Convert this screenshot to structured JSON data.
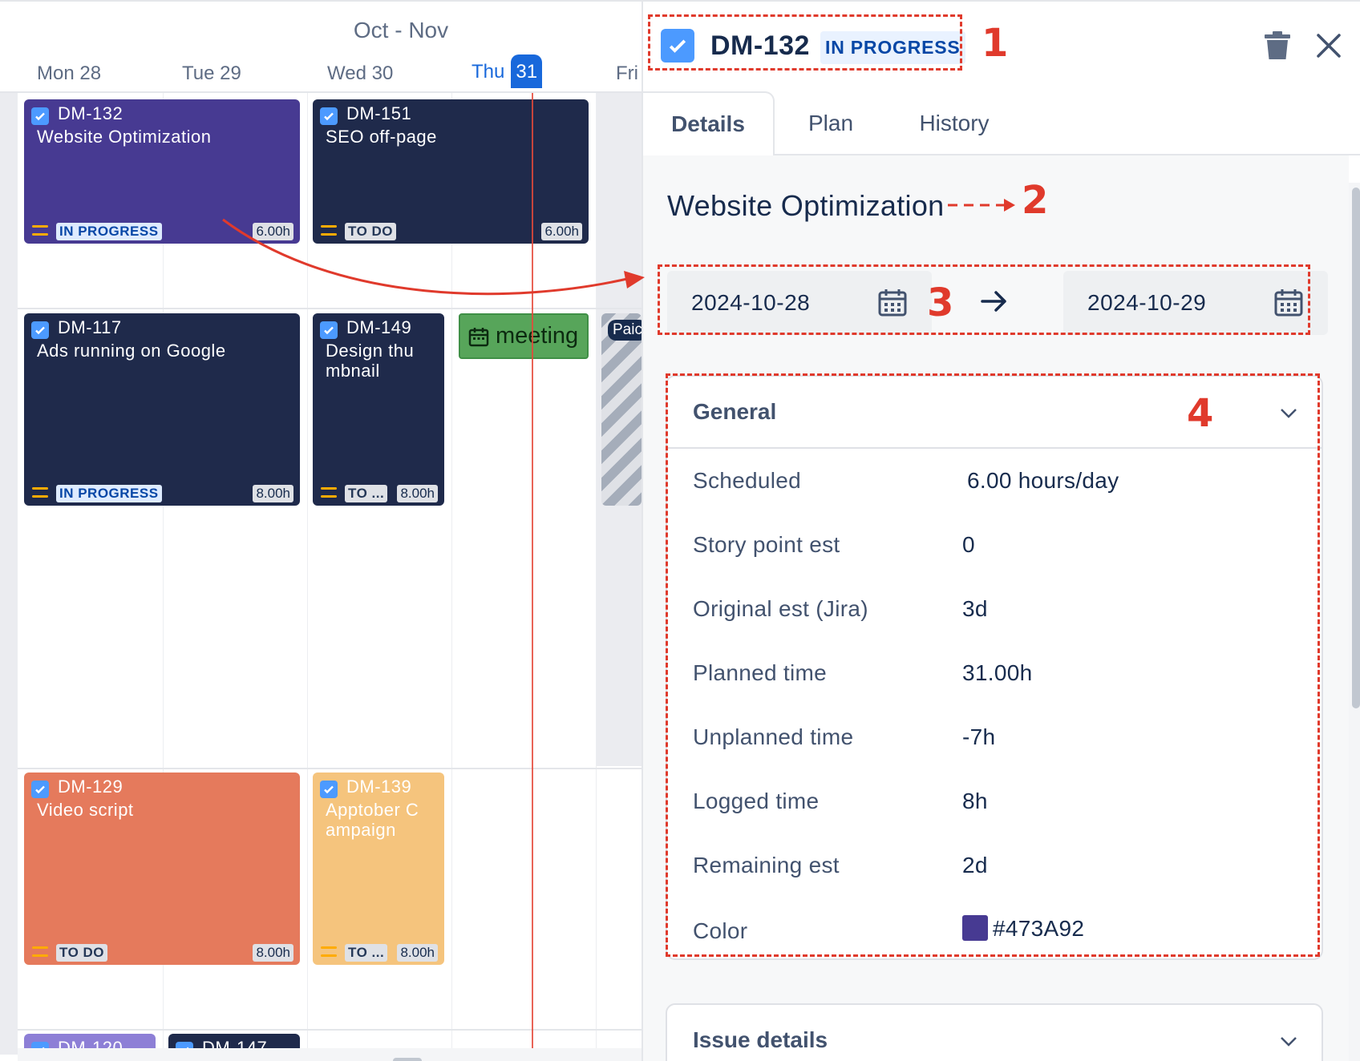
{
  "calendar": {
    "range_title": "Oct - Nov",
    "days": [
      {
        "name": "Mon",
        "num": "28"
      },
      {
        "name": "Tue",
        "num": "29"
      },
      {
        "name": "Wed",
        "num": "30"
      },
      {
        "name": "Thu",
        "num": "31"
      },
      {
        "name": "Fri",
        "num": ""
      }
    ],
    "today_index": 3,
    "cards": [
      {
        "key": "DM-132",
        "title": "Website Optimization",
        "status": "IN PROGRESS",
        "hours": "6.00h",
        "color": "#473A92"
      },
      {
        "key": "DM-151",
        "title": "SEO off-page",
        "status": "TO DO",
        "hours": "6.00h",
        "color": "#1F2A4B"
      },
      {
        "key": "DM-117",
        "title": "Ads running on Google",
        "status": "IN PROGRESS",
        "hours": "8.00h",
        "color": "#1F2A4B"
      },
      {
        "key": "DM-149",
        "title": "Design thu mbnail",
        "status": "TO ...",
        "hours": "8.00h",
        "color": "#1F2A4B"
      },
      {
        "key": "DM-129",
        "title": "Video script",
        "status": "TO DO",
        "hours": "8.00h",
        "color": "#E57A5C"
      },
      {
        "key": "DM-139",
        "title": "Apptober C ampaign",
        "status": "TO ...",
        "hours": "8.00h",
        "color": "#F5C47D"
      },
      {
        "key": "DM-120",
        "title": "",
        "status": "",
        "hours": "",
        "color": "#8D7FD6"
      },
      {
        "key": "DM-147",
        "title": "",
        "status": "",
        "hours": "",
        "color": "#1F2A4B"
      }
    ],
    "meeting": {
      "label": "meeting",
      "color": "#57A55A"
    },
    "striped_event": {
      "label": "Paic"
    }
  },
  "panel": {
    "issue_key": "DM-132",
    "status": "IN PROGRESS",
    "tabs": [
      "Details",
      "Plan",
      "History"
    ],
    "active_tab": "Details",
    "summary": "Website Optimization",
    "start_date": "2024-10-28",
    "end_date": "2024-10-29",
    "general": {
      "title": "General",
      "fields": [
        {
          "label": "Scheduled",
          "value": "6.00 hours/day"
        },
        {
          "label": "Story point est",
          "value": "0"
        },
        {
          "label": "Original est (Jira)",
          "value": "3d"
        },
        {
          "label": "Planned time",
          "value": "31.00h"
        },
        {
          "label": "Unplanned time",
          "value": "-7h"
        },
        {
          "label": "Logged time",
          "value": "8h"
        },
        {
          "label": "Remaining est",
          "value": "2d"
        },
        {
          "label": "Color",
          "value": "#473A92"
        }
      ]
    },
    "issue_details": {
      "title": "Issue details"
    }
  },
  "annotations": [
    "1",
    "2",
    "3",
    "4"
  ],
  "colors": {
    "accent": "#1868DB",
    "annotation": "#E03A2C",
    "today_line": "#E5493A"
  }
}
